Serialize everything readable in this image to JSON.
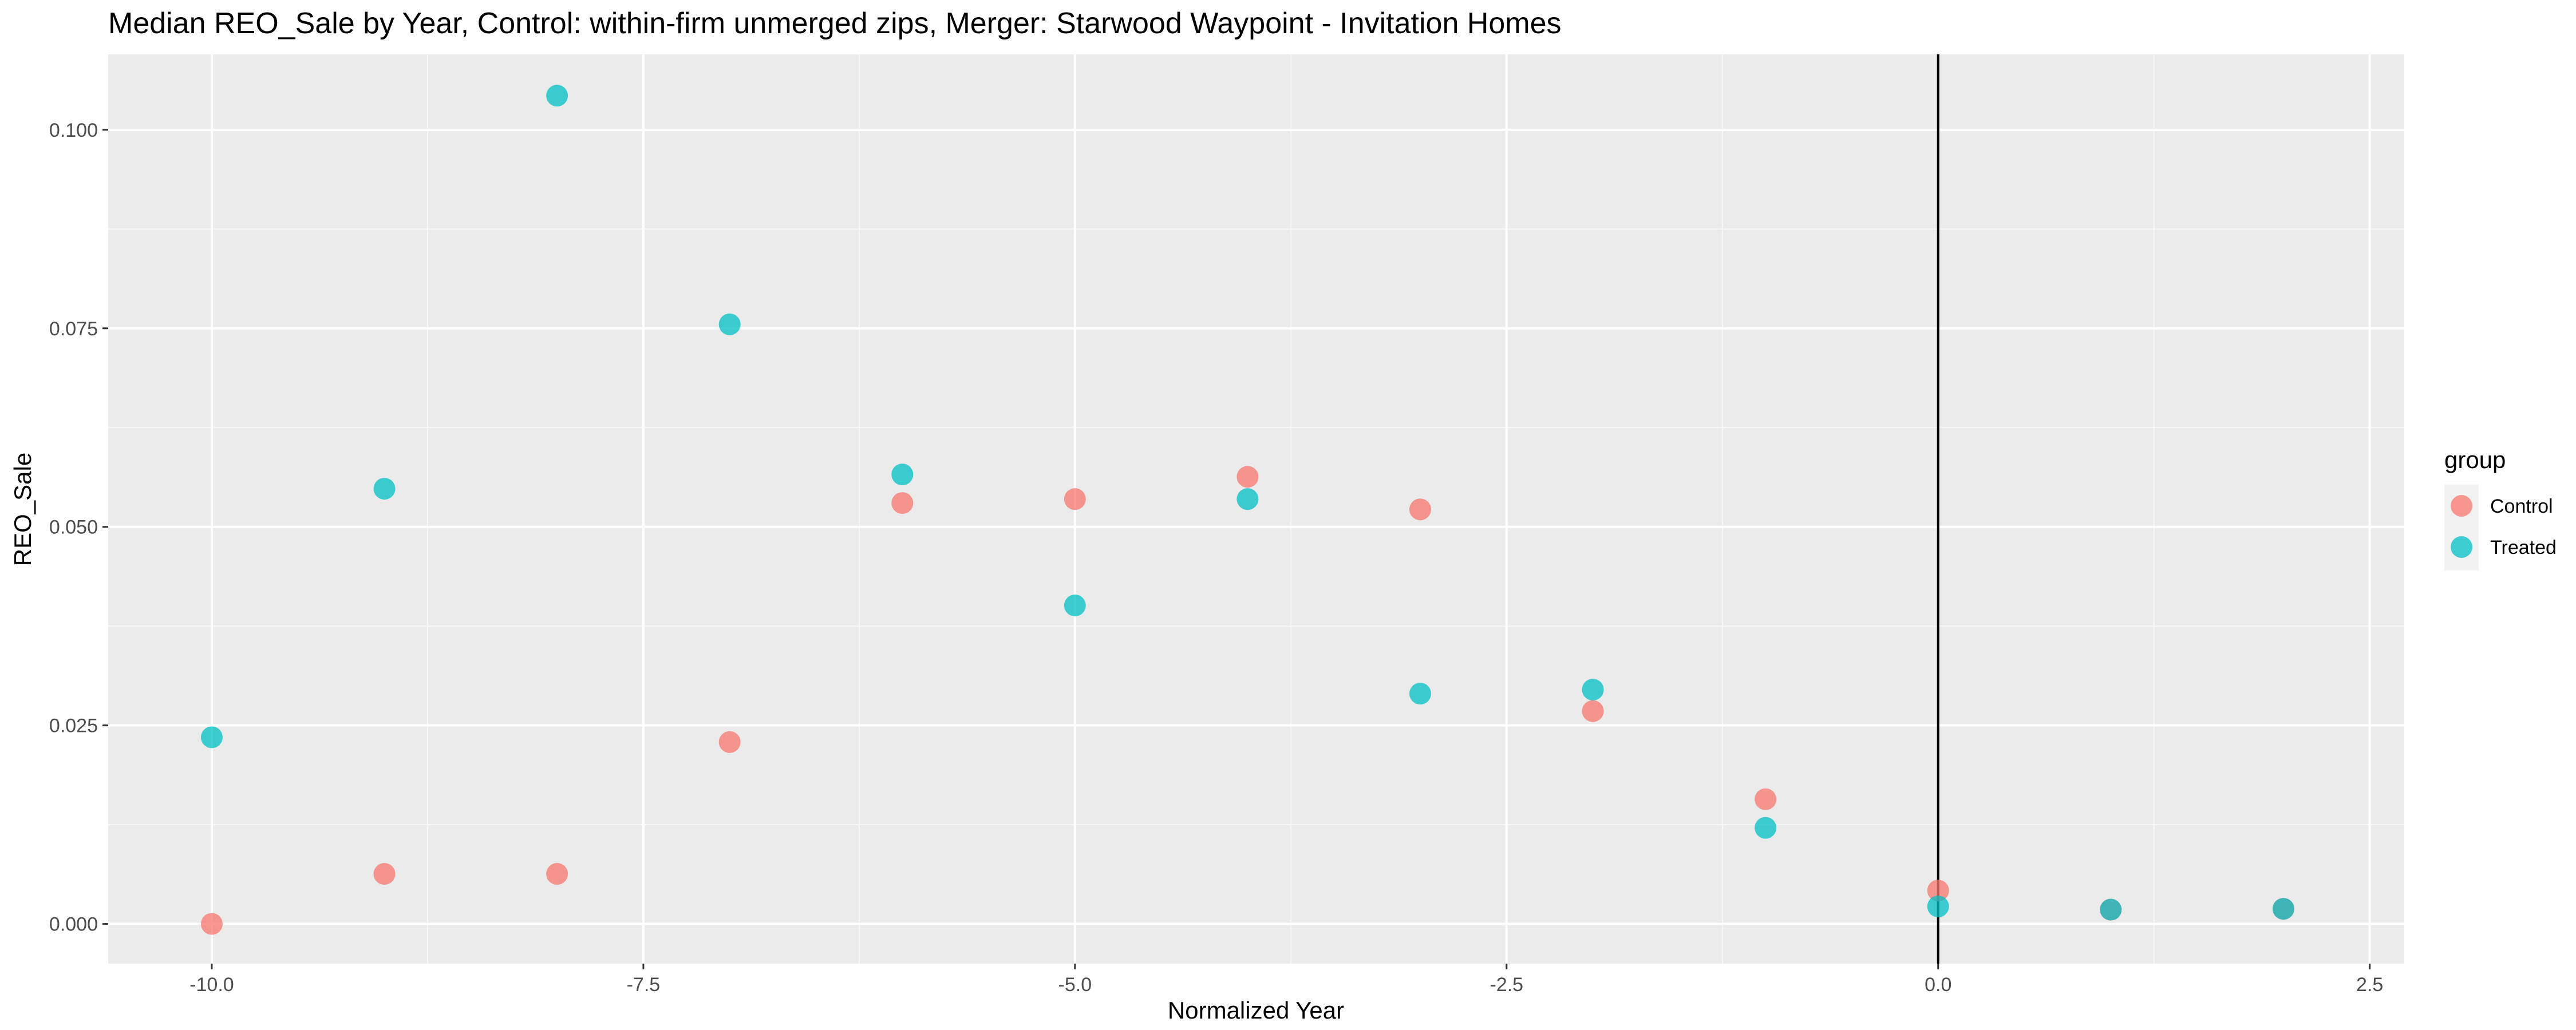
{
  "chart_data": {
    "type": "scatter",
    "title": "Median REO_Sale by Year, Control: within-firm unmerged zips, Merger: Starwood Waypoint - Invitation Homes",
    "xlabel": "Normalized Year",
    "ylabel": "REO_Sale",
    "xlim": [
      -10.6,
      2.7
    ],
    "ylim": [
      -0.005,
      0.1095
    ],
    "x_ticks": [
      -10.0,
      -7.5,
      -5.0,
      -2.5,
      0.0,
      2.5
    ],
    "x_tick_labels": [
      "-10.0",
      "-7.5",
      "-5.0",
      "-2.5",
      "0.0",
      "2.5"
    ],
    "y_ticks": [
      0.0,
      0.025,
      0.05,
      0.075,
      0.1
    ],
    "y_tick_labels": [
      "0.000",
      "0.025",
      "0.050",
      "0.075",
      "0.100"
    ],
    "vline_x": 0,
    "grid": true,
    "legend": {
      "title": "group",
      "position": "right"
    },
    "series": [
      {
        "name": "Control",
        "color": "#F8766D",
        "points": [
          [
            -10,
            0.0
          ],
          [
            -9,
            0.0063
          ],
          [
            -8,
            0.0063
          ],
          [
            -7,
            0.0229
          ],
          [
            -6,
            0.053
          ],
          [
            -5,
            0.0535
          ],
          [
            -4,
            0.0563
          ],
          [
            -3,
            0.0522
          ],
          [
            -2,
            0.0268
          ],
          [
            -1,
            0.0157
          ],
          [
            0,
            0.0042
          ],
          [
            1,
            0.0018
          ],
          [
            2,
            0.0019
          ]
        ]
      },
      {
        "name": "Treated",
        "color": "#00BFC4",
        "points": [
          [
            -10,
            0.0235
          ],
          [
            -9,
            0.0548
          ],
          [
            -8,
            0.1043
          ],
          [
            -7,
            0.0755
          ],
          [
            -6,
            0.0566
          ],
          [
            -5,
            0.0401
          ],
          [
            -4,
            0.0535
          ],
          [
            -3,
            0.029
          ],
          [
            -2,
            0.0295
          ],
          [
            -1,
            0.0121
          ],
          [
            0,
            0.0022
          ],
          [
            1,
            0.0018
          ],
          [
            2,
            0.0019
          ]
        ]
      }
    ]
  }
}
